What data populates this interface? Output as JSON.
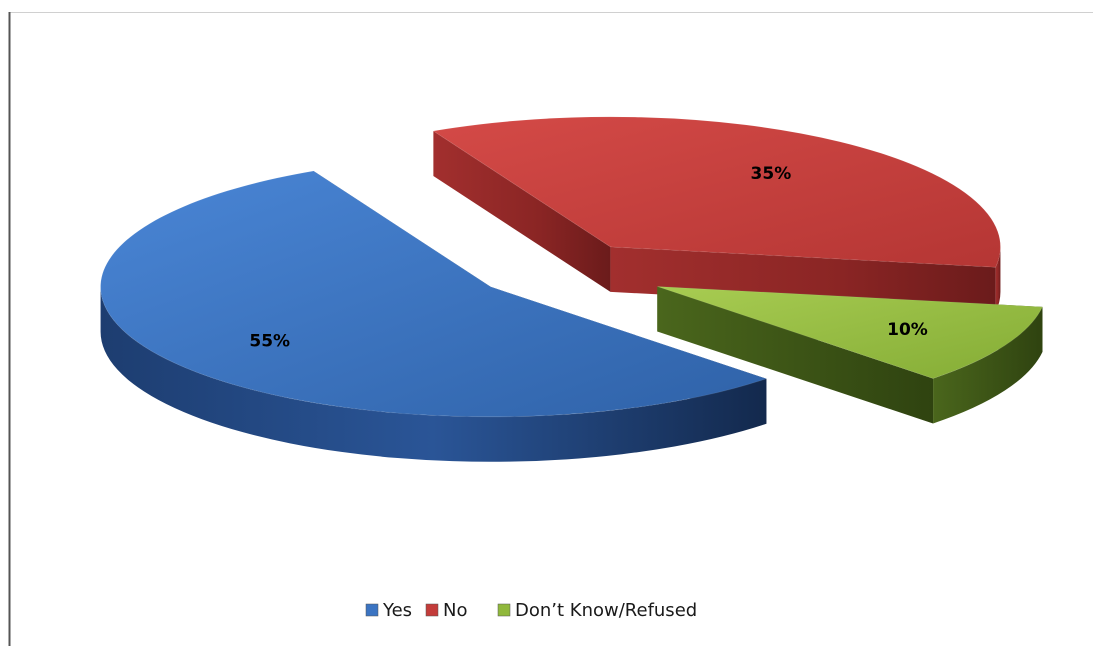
{
  "chart_data": {
    "type": "pie",
    "style": "3d-exploded",
    "categories": [
      "Yes",
      "No",
      "Don’t Know/Refused"
    ],
    "values": [
      55,
      35,
      10
    ],
    "data_labels": [
      "55%",
      "35%",
      "10%"
    ],
    "colors": [
      "#3b74c2",
      "#c33c3a",
      "#90b83c"
    ],
    "legend_position": "bottom"
  }
}
